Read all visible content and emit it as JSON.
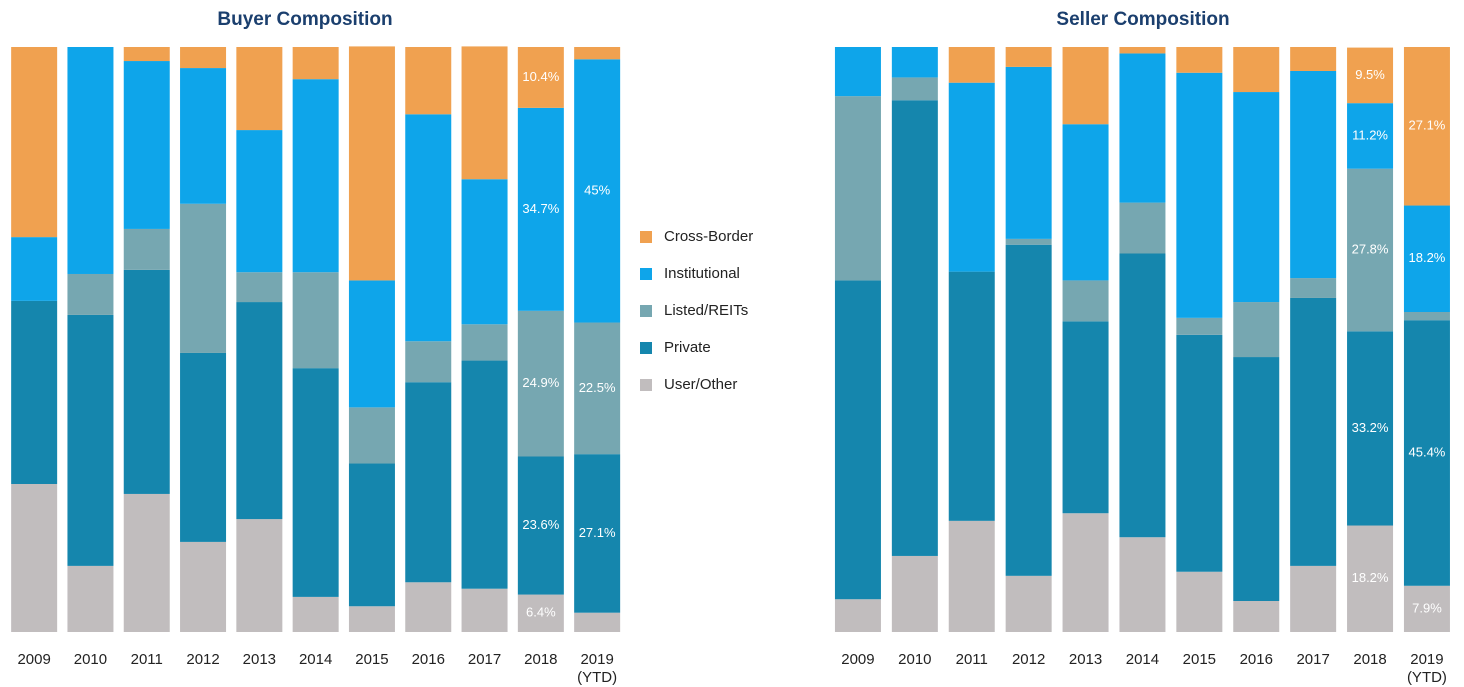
{
  "chart_data": [
    {
      "type": "bar",
      "stacked": true,
      "title": "Buyer Composition",
      "legend": "right",
      "categories": [
        "2009",
        "2010",
        "2011",
        "2012",
        "2013",
        "2014",
        "2015",
        "2016",
        "2017",
        "2018",
        "2019 (YTD)"
      ],
      "ylim": [
        0,
        100
      ],
      "series": [
        {
          "name": "User/Other",
          "color": "#c1bdbe",
          "values": [
            25.3,
            11.3,
            23.6,
            15.4,
            19.3,
            6.0,
            4.4,
            8.5,
            7.4,
            6.4,
            3.3
          ],
          "value_labels": [
            null,
            null,
            null,
            null,
            null,
            null,
            null,
            null,
            null,
            "6.4%",
            null
          ]
        },
        {
          "name": "Private",
          "color": "#1586ad",
          "values": [
            31.3,
            42.9,
            38.3,
            32.3,
            37.1,
            39.1,
            24.4,
            34.2,
            39.0,
            23.6,
            27.1
          ],
          "value_labels": [
            null,
            null,
            null,
            null,
            null,
            null,
            null,
            null,
            null,
            "23.6%",
            "27.1%"
          ]
        },
        {
          "name": "Listed/REITs",
          "color": "#76a7b1",
          "values": [
            0,
            7.0,
            7.0,
            25.5,
            5.1,
            16.4,
            9.6,
            7.0,
            6.2,
            24.9,
            22.5
          ],
          "value_labels": [
            null,
            null,
            null,
            null,
            null,
            null,
            null,
            null,
            null,
            "24.9%",
            "22.5%"
          ]
        },
        {
          "name": "Institutional",
          "color": "#0ea5ea",
          "values": [
            10.9,
            38.8,
            28.7,
            23.2,
            24.3,
            33.0,
            21.7,
            38.8,
            24.8,
            34.7,
            45
          ],
          "value_labels": [
            null,
            null,
            null,
            null,
            null,
            null,
            null,
            null,
            null,
            "34.7%",
            "45%"
          ]
        },
        {
          "name": "Cross-Border",
          "color": "#f0a150",
          "values": [
            32.5,
            0,
            2.4,
            3.6,
            14.2,
            5.5,
            40.0,
            11.5,
            22.7,
            10.4,
            2.1
          ],
          "value_labels": [
            null,
            null,
            null,
            null,
            null,
            null,
            null,
            null,
            null,
            "10.4%",
            null
          ]
        }
      ]
    },
    {
      "type": "bar",
      "stacked": true,
      "title": "Seller Composition",
      "categories": [
        "2009",
        "2010",
        "2011",
        "2012",
        "2013",
        "2014",
        "2015",
        "2016",
        "2017",
        "2018",
        "2019 (YTD)"
      ],
      "ylim": [
        0,
        100
      ],
      "series": [
        {
          "name": "User/Other",
          "color": "#c1bdbe",
          "values": [
            5.6,
            13.0,
            19.0,
            9.6,
            20.3,
            16.2,
            10.3,
            5.3,
            11.3,
            18.2,
            7.9
          ],
          "value_labels": [
            null,
            null,
            null,
            null,
            null,
            null,
            null,
            null,
            null,
            "18.2%",
            "7.9%"
          ]
        },
        {
          "name": "Private",
          "color": "#1586ad",
          "values": [
            54.5,
            77.9,
            42.6,
            56.6,
            32.8,
            48.5,
            40.5,
            41.7,
            45.8,
            33.2,
            45.4
          ],
          "value_labels": [
            null,
            null,
            null,
            null,
            null,
            null,
            null,
            null,
            null,
            "33.2%",
            "45.4%"
          ]
        },
        {
          "name": "Listed/REITs",
          "color": "#76a7b1",
          "values": [
            31.5,
            3.9,
            0,
            1.0,
            7.0,
            8.7,
            2.9,
            9.4,
            3.4,
            27.8,
            1.4
          ],
          "value_labels": [
            null,
            null,
            null,
            null,
            null,
            null,
            null,
            null,
            null,
            "27.8%",
            null
          ]
        },
        {
          "name": "Institutional",
          "color": "#0ea5ea",
          "values": [
            8.4,
            5.2,
            32.3,
            29.4,
            26.7,
            25.5,
            41.9,
            35.9,
            35.4,
            11.2,
            18.2
          ],
          "value_labels": [
            null,
            null,
            null,
            null,
            null,
            null,
            null,
            null,
            null,
            "11.2%",
            "18.2%"
          ]
        },
        {
          "name": "Cross-Border",
          "color": "#f0a150",
          "values": [
            0,
            0,
            6.1,
            3.4,
            13.2,
            1.1,
            4.4,
            7.7,
            4.1,
            9.5,
            27.1
          ],
          "value_labels": [
            null,
            null,
            null,
            null,
            null,
            null,
            null,
            null,
            null,
            "9.5%",
            "27.1%"
          ]
        }
      ]
    }
  ]
}
